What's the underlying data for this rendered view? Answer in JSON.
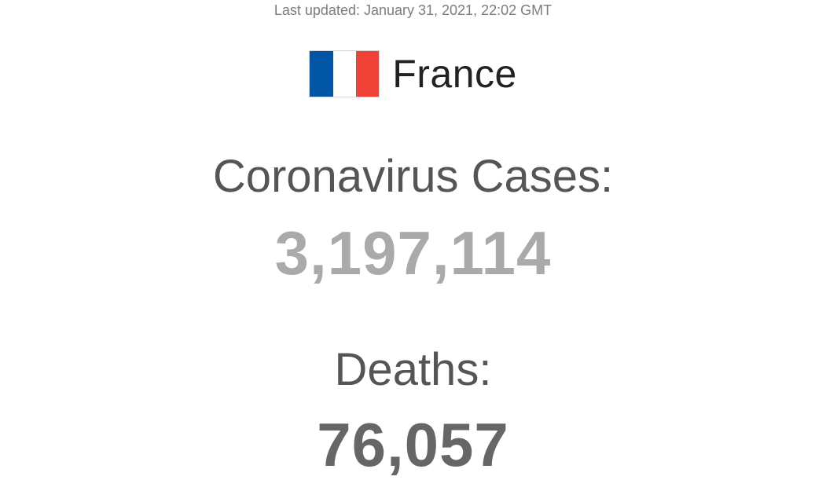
{
  "header": {
    "last_updated": "Last updated: January 31, 2021, 22:02 GMT"
  },
  "country": {
    "name": "France",
    "flag_icon": "france-flag-icon",
    "flag_colors": [
      "#0055a4",
      "#ffffff",
      "#ef4135"
    ]
  },
  "stats": {
    "cases_label": "Coronavirus Cases:",
    "cases_value": "3,197,114",
    "cases_color": "#aaaaaa",
    "deaths_label": "Deaths:",
    "deaths_value": "76,057",
    "deaths_color": "#666666"
  }
}
